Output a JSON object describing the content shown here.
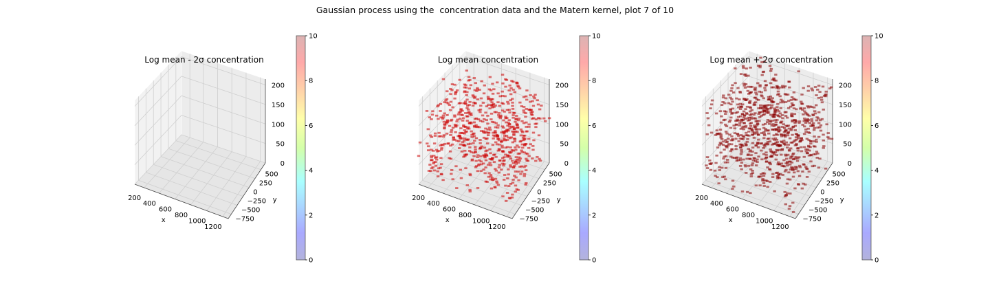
{
  "figure": {
    "suptitle": "Gaussian process using the  concentration data and the Matern kernel, plot 7 of 10"
  },
  "chart_data": [
    {
      "type": "scatter",
      "projection": "3d",
      "title": "Log mean - 2σ concentration",
      "xlabel": "x",
      "ylabel": "y",
      "zlabel": "",
      "x_ticks": [
        "200",
        "400",
        "600",
        "800",
        "1000",
        "1200"
      ],
      "y_ticks": [
        "−750",
        "−500",
        "−250",
        "0",
        "250",
        "500"
      ],
      "z_ticks": [
        "0",
        "50",
        "100",
        "150",
        "200"
      ],
      "xlim": [
        100,
        1250
      ],
      "ylim": [
        -900,
        700
      ],
      "zlim": [
        0,
        215
      ],
      "colorbar": {
        "ticks": [
          "0",
          "2",
          "4",
          "6",
          "8",
          "10"
        ],
        "range": [
          0,
          10
        ],
        "colormap": "jet-alpha"
      },
      "points": "none",
      "grid": true
    },
    {
      "type": "scatter",
      "projection": "3d",
      "title": "Log mean concentration",
      "xlabel": "x",
      "ylabel": "y",
      "zlabel": "",
      "x_ticks": [
        "200",
        "400",
        "600",
        "800",
        "1000",
        "1200"
      ],
      "y_ticks": [
        "−750",
        "−500",
        "−250",
        "0",
        "250",
        "500"
      ],
      "z_ticks": [
        "0",
        "50",
        "100",
        "150",
        "200"
      ],
      "xlim": [
        100,
        1250
      ],
      "ylim": [
        -900,
        700
      ],
      "zlim": [
        0,
        215
      ],
      "colorbar": {
        "ticks": [
          "0",
          "2",
          "4",
          "6",
          "8",
          "10"
        ],
        "range": [
          0,
          10
        ],
        "colormap": "jet-alpha"
      },
      "points": "dense layered red markers across full volume",
      "marker_color": "#cc0000",
      "grid": true
    },
    {
      "type": "scatter",
      "projection": "3d",
      "title": "Log mean + 2σ concentration",
      "xlabel": "x",
      "ylabel": "y",
      "zlabel": "",
      "x_ticks": [
        "200",
        "400",
        "600",
        "800",
        "1000",
        "1200"
      ],
      "y_ticks": [
        "−750",
        "−500",
        "−250",
        "0",
        "250",
        "500"
      ],
      "z_ticks": [
        "0",
        "50",
        "100",
        "150",
        "200"
      ],
      "xlim": [
        100,
        1250
      ],
      "ylim": [
        -900,
        700
      ],
      "zlim": [
        0,
        215
      ],
      "colorbar": {
        "ticks": [
          "0",
          "2",
          "4",
          "6",
          "8",
          "10"
        ],
        "range": [
          0,
          10
        ],
        "colormap": "jet-alpha"
      },
      "points": "dense layered dark red markers across full volume",
      "marker_color": "#8b0000",
      "grid": true
    }
  ]
}
